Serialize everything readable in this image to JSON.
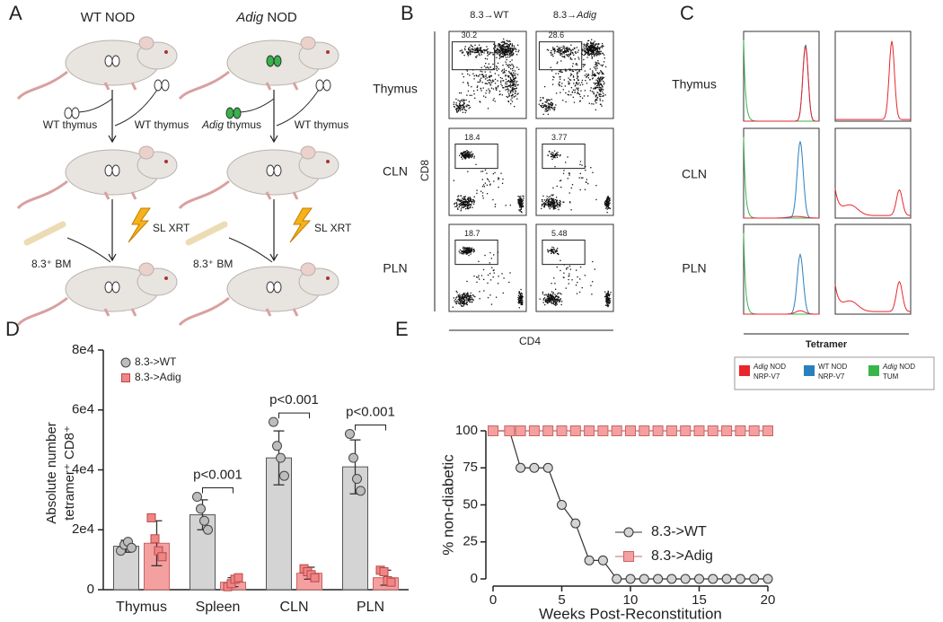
{
  "panel_labels": [
    "A",
    "B",
    "C",
    "D",
    "E"
  ],
  "panel_a": {
    "wt_title": "WT NOD",
    "adig_title": {
      "italic": "Adig",
      "rest": " NOD"
    },
    "left_graft": "WT thymus",
    "left_donor": "WT thymus",
    "right_graft": {
      "italic": "Adig",
      "rest": " thymus"
    },
    "right_donor": "WT thymus",
    "left_xrt": "SL XRT",
    "right_xrt": "SL XRT",
    "left_bm": "8.3⁺ BM",
    "right_bm": "8.3⁺ BM"
  },
  "panel_b": {
    "columns": [
      {
        "text": "8.3→WT"
      },
      {
        "text": "8.3→",
        "italic": "Adig"
      }
    ],
    "rows": [
      "Thymus",
      "CLN",
      "PLN"
    ],
    "y_label": "CD8",
    "x_label": "CD4",
    "gates": [
      [
        "30.2",
        "28.6"
      ],
      [
        "18.4",
        "3.77"
      ],
      [
        "18.7",
        "5.48"
      ]
    ]
  },
  "panel_c": {
    "rows": [
      "Thymus",
      "CLN",
      "PLN"
    ],
    "x_label": "Tetramer",
    "legend": [
      {
        "italic": "Adig",
        "rest": " NOD",
        "line2": "NRP-V7",
        "color": "#e8262b"
      },
      {
        "text": "WT NOD",
        "line2": "NRP-V7",
        "color": "#2a7fc1"
      },
      {
        "italic": "Adig",
        "rest": " NOD",
        "line2": "TUM",
        "color": "#39b54a"
      }
    ]
  },
  "chart_data": [
    {
      "type": "bar",
      "y_label": [
        "Absolute number",
        "tetramer⁺ CD8⁺"
      ],
      "categories": [
        "Thymus",
        "Spleen",
        "CLN",
        "PLN"
      ],
      "series": [
        {
          "name": "8.3->WT",
          "color": "#d4d4d4",
          "values": [
            14500,
            25000,
            44000,
            41000
          ],
          "errors": [
            2000,
            5000,
            9000,
            9000
          ],
          "points": [
            [
              13000,
              15000,
              16000,
              14000
            ],
            [
              31000,
              27000,
              23000,
              20000
            ],
            [
              56000,
              48000,
              44000,
              38000
            ],
            [
              52000,
              44000,
              37000,
              33000
            ]
          ]
        },
        {
          "name": "8.3->Adig",
          "color": "#f4a0a0",
          "values": [
            15500,
            2500,
            5500,
            4000
          ],
          "errors": [
            7500,
            1500,
            2000,
            2500
          ],
          "points": [
            [
              24000,
              17000,
              13000,
              11000
            ],
            [
              1000,
              2000,
              3500,
              4000
            ],
            [
              7000,
              6000,
              5000,
              4000
            ],
            [
              6500,
              6000,
              3000,
              2500
            ]
          ]
        }
      ],
      "ylim": [
        0,
        80000
      ],
      "yticks": [
        0,
        {
          "value": 20000,
          "label": "2e4"
        },
        {
          "value": 40000,
          "label": "4e4"
        },
        {
          "value": 60000,
          "label": "6e4"
        },
        {
          "value": 80000,
          "label": "8e4"
        }
      ],
      "annotations": [
        null,
        "p<0.001",
        "p<0.001",
        "p<0.001"
      ]
    },
    {
      "type": "line",
      "x": [
        0,
        1.2,
        2,
        3,
        4,
        5,
        6,
        7,
        8,
        9,
        10,
        11,
        12,
        13,
        14,
        15,
        16,
        17,
        18,
        19,
        20
      ],
      "series": [
        {
          "name": "8.3->WT",
          "color": "#d4d4d4",
          "marker": "circle",
          "values": [
            100,
            100,
            75,
            75,
            75,
            50,
            37.5,
            12.5,
            12.5,
            0,
            0,
            0,
            0,
            0,
            0,
            0,
            0,
            0,
            0,
            0,
            0
          ]
        },
        {
          "name": "8.3->Adig",
          "color": "#f4a0a0",
          "marker": "square",
          "values": [
            100,
            100,
            100,
            100,
            100,
            100,
            100,
            100,
            100,
            100,
            100,
            100,
            100,
            100,
            100,
            100,
            100,
            100,
            100,
            100,
            100
          ]
        }
      ],
      "xlim": [
        0,
        20
      ],
      "xticks": [
        0,
        5,
        10,
        15,
        20
      ],
      "ylim": [
        0,
        100
      ],
      "yticks": [
        0,
        25,
        50,
        75,
        100
      ],
      "x_label": "Weeks Post-Reconstitution",
      "y_label": "% non-diabetic"
    }
  ]
}
